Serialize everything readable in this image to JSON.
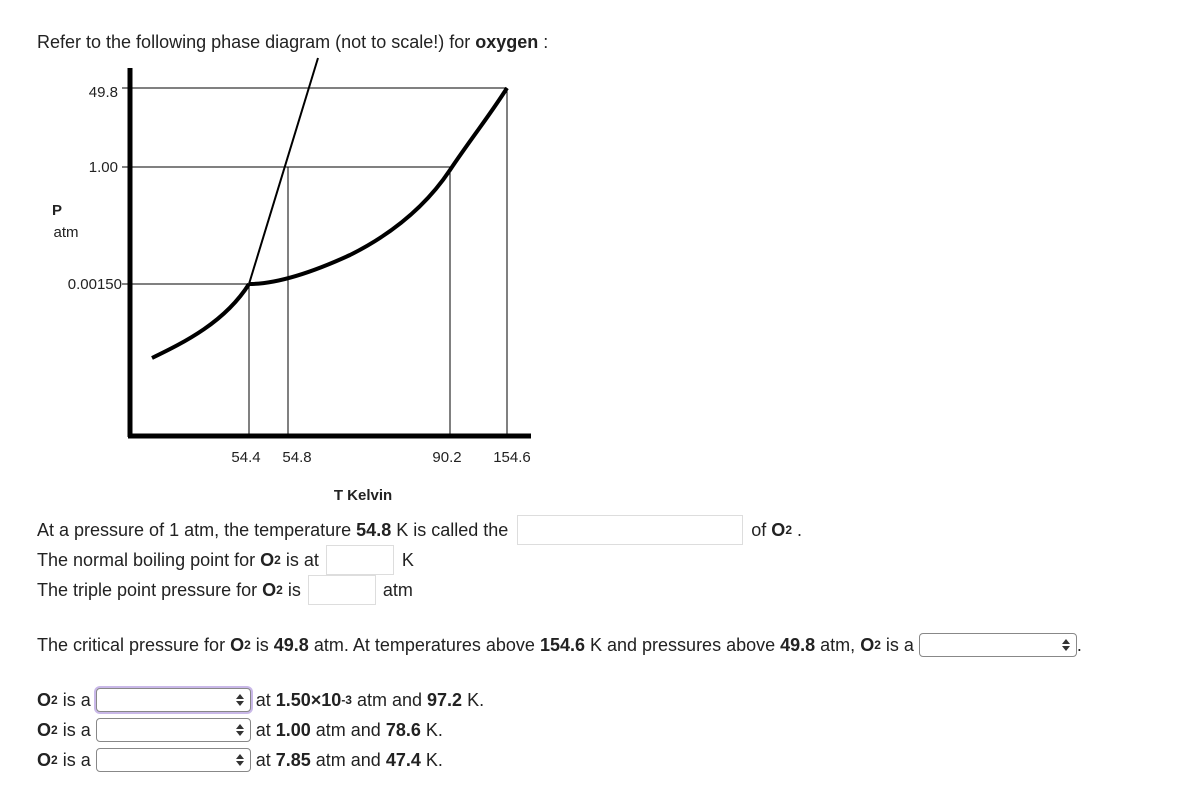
{
  "intro": [
    "Refer to the following phase diagram (not to scale!) for ",
    "oxygen",
    " :"
  ],
  "diagram": {
    "p_ticks": [
      "49.8",
      "1.00",
      "0.00150"
    ],
    "p_label": [
      "P",
      "atm"
    ],
    "t_ticks": [
      "54.4",
      "54.8",
      "90.2",
      "154.6"
    ],
    "t_label": "T Kelvin"
  },
  "fill_in": [
    [
      "At a pressure of 1 atm, the temperature ",
      "54.8",
      " K is called the ",
      "of ",
      "O",
      "2",
      " ."
    ],
    [
      "The normal boiling point for ",
      "O",
      "2",
      " is at ",
      "K"
    ],
    [
      "The triple point pressure for ",
      "O",
      "2",
      " is ",
      "atm"
    ]
  ],
  "critical": [
    "The critical pressure for ",
    "O",
    "2",
    " is ",
    "49.8",
    " atm. At temperatures above ",
    "154.6",
    " K and pressures above ",
    "49.8",
    " atm, ",
    "O",
    "2",
    " is a ",
    "."
  ],
  "states": [
    [
      "O",
      "2",
      " is a ",
      "at ",
      "1.50×10",
      "-3",
      " atm and ",
      "97.2",
      " K."
    ],
    [
      "O",
      "2",
      " is a ",
      "at ",
      "1.00",
      " atm and ",
      "78.6",
      " K."
    ],
    [
      "O",
      "2",
      " is a ",
      "at ",
      "7.85",
      " atm and ",
      "47.4",
      " K."
    ]
  ]
}
